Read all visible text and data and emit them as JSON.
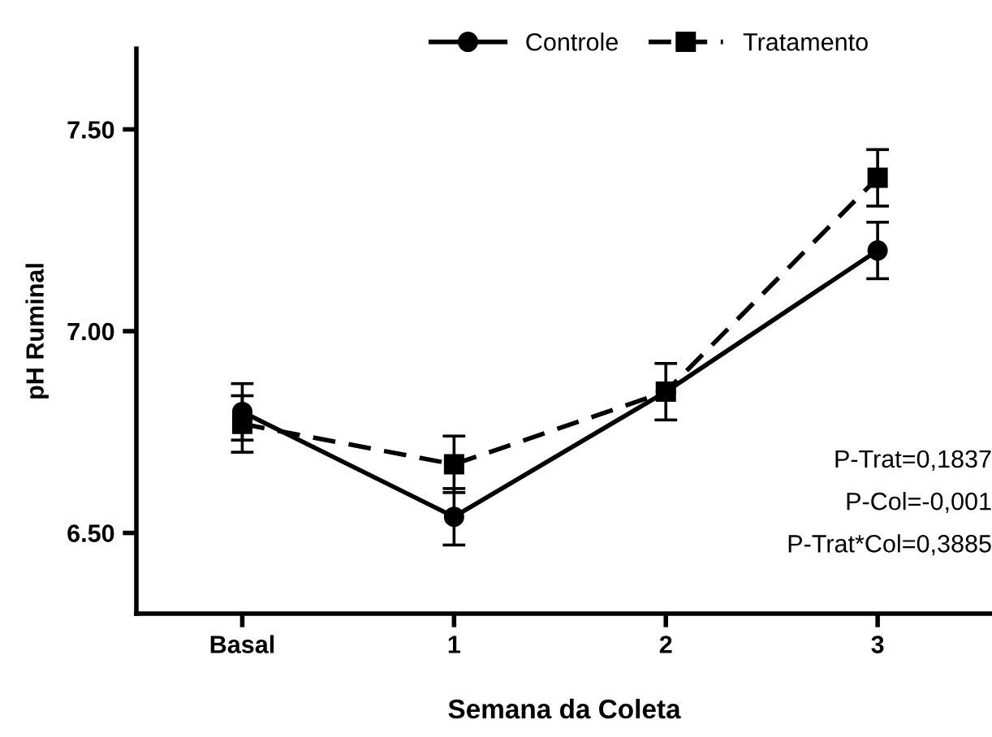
{
  "chart_data": {
    "type": "line",
    "xlabel": "Semana da Coleta",
    "ylabel": "pH Ruminal",
    "categories": [
      "Basal",
      "1",
      "2",
      "3"
    ],
    "series": [
      {
        "name": "Controle",
        "color": "#000000",
        "values": [
          6.8,
          6.54,
          6.85,
          7.2
        ],
        "errors": [
          0.07,
          0.07,
          null,
          0.07
        ],
        "marker": "circle",
        "line_style": "solid"
      },
      {
        "name": "Tratamento",
        "color": "#000000",
        "values": [
          6.77,
          6.67,
          6.85,
          7.38
        ],
        "errors": [
          0.07,
          0.07,
          0.07,
          0.07
        ],
        "marker": "square",
        "line_style": "dashed"
      }
    ],
    "ylim": [
      6.3,
      7.7
    ],
    "yticks": [
      {
        "value": 6.5,
        "label": "6.50"
      },
      {
        "value": 7.0,
        "label": "7.00"
      },
      {
        "value": 7.5,
        "label": "7.50"
      }
    ],
    "grid": false,
    "legend": "top",
    "annotations": [
      "P-Trat=0,1837",
      "P-Col=-0,001",
      "P-Trat*Col=0,3885"
    ]
  }
}
